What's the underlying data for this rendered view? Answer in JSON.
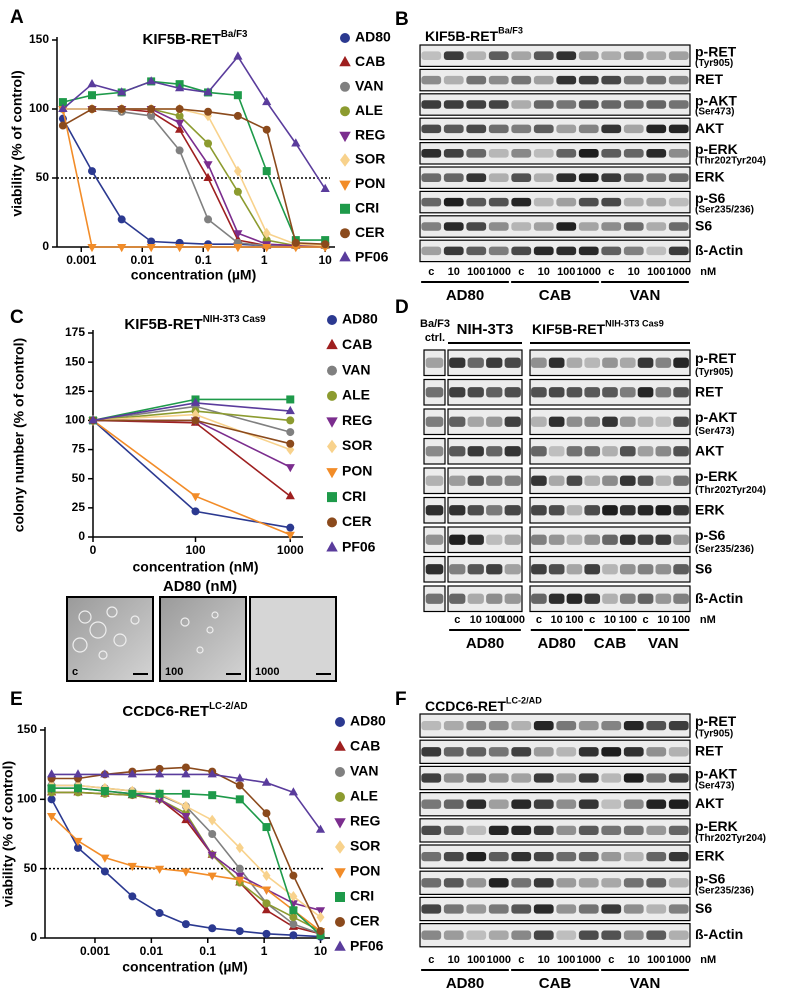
{
  "chart_data": [
    {
      "panel": "A",
      "type": "line",
      "title": "KIF5B-RET",
      "title_superscript": "Ba/F3",
      "xlabel": "concentration (µM)",
      "ylabel": "viability (% of control)",
      "xscale": "log",
      "x": [
        0.0005,
        0.0015,
        0.0046,
        0.014,
        0.041,
        0.12,
        0.37,
        1.1,
        3.3,
        10
      ],
      "xlim": [
        0.0004,
        12
      ],
      "xticks": [
        0.001,
        0.01,
        0.1,
        1,
        10
      ],
      "ylim": [
        0,
        150
      ],
      "yticks": [
        0,
        50,
        100,
        150
      ],
      "reference_line": 50,
      "series": [
        {
          "name": "AD80",
          "color": "#2b3990",
          "marker": "circle",
          "values": [
            93,
            55,
            20,
            4,
            3,
            2,
            2,
            1,
            1,
            1
          ]
        },
        {
          "name": "CAB",
          "color": "#9e1f1f",
          "marker": "triangle",
          "values": [
            100,
            100,
            100,
            98,
            85,
            50,
            5,
            1,
            1,
            1
          ]
        },
        {
          "name": "VAN",
          "color": "#808080",
          "marker": "circle",
          "values": [
            100,
            100,
            98,
            95,
            70,
            20,
            3,
            1,
            1,
            1
          ]
        },
        {
          "name": "ALE",
          "color": "#8c9b2f",
          "marker": "circle",
          "values": [
            100,
            100,
            100,
            100,
            95,
            75,
            40,
            5,
            1,
            1
          ]
        },
        {
          "name": "REG",
          "color": "#7b2d8e",
          "marker": "triangle-down",
          "values": [
            100,
            100,
            100,
            100,
            90,
            60,
            10,
            2,
            1,
            1
          ]
        },
        {
          "name": "SOR",
          "color": "#f8d28c",
          "marker": "diamond",
          "values": [
            100,
            100,
            100,
            100,
            100,
            95,
            55,
            10,
            2,
            1
          ]
        },
        {
          "name": "PON",
          "color": "#f28c28",
          "marker": "triangle-down",
          "values": [
            100,
            0,
            0,
            0,
            0,
            0,
            0,
            0,
            0,
            0
          ]
        },
        {
          "name": "CRI",
          "color": "#1e9a4a",
          "marker": "square",
          "values": [
            105,
            110,
            112,
            120,
            118,
            112,
            110,
            55,
            5,
            5
          ]
        },
        {
          "name": "CER",
          "color": "#8b4a1c",
          "marker": "circle",
          "values": [
            88,
            100,
            100,
            100,
            100,
            98,
            95,
            85,
            3,
            2
          ]
        },
        {
          "name": "PF06",
          "color": "#5a3c9c",
          "marker": "triangle",
          "values": [
            100,
            118,
            112,
            120,
            115,
            112,
            138,
            105,
            75,
            42
          ]
        }
      ]
    },
    {
      "panel": "C",
      "type": "line",
      "title": "KIF5B-RET",
      "title_superscript": "NIH-3T3 Cas9",
      "xlabel": "concentration (nM)",
      "ylabel": "colony number (% of control)",
      "xscale": "symlog",
      "x": [
        0,
        100,
        1000
      ],
      "xlim": [
        0,
        1200
      ],
      "xticks": [
        0,
        100,
        1000
      ],
      "ylim": [
        0,
        175
      ],
      "yticks": [
        0,
        25,
        50,
        75,
        100,
        125,
        150,
        175
      ],
      "series": [
        {
          "name": "AD80",
          "color": "#2b3990",
          "marker": "circle",
          "values": [
            100,
            22,
            8
          ]
        },
        {
          "name": "CAB",
          "color": "#9e1f1f",
          "marker": "triangle",
          "values": [
            100,
            98,
            35
          ]
        },
        {
          "name": "VAN",
          "color": "#808080",
          "marker": "circle",
          "values": [
            100,
            112,
            90
          ]
        },
        {
          "name": "ALE",
          "color": "#8c9b2f",
          "marker": "circle",
          "values": [
            100,
            108,
            100
          ]
        },
        {
          "name": "REG",
          "color": "#7b2d8e",
          "marker": "triangle-down",
          "values": [
            100,
            100,
            60
          ]
        },
        {
          "name": "SOR",
          "color": "#f8d28c",
          "marker": "diamond",
          "values": [
            100,
            105,
            75
          ]
        },
        {
          "name": "PON",
          "color": "#f28c28",
          "marker": "triangle-down",
          "values": [
            100,
            35,
            2
          ]
        },
        {
          "name": "CRI",
          "color": "#1e9a4a",
          "marker": "square",
          "values": [
            100,
            118,
            118
          ]
        },
        {
          "name": "CER",
          "color": "#8b4a1c",
          "marker": "circle",
          "values": [
            100,
            100,
            80
          ]
        },
        {
          "name": "PF06",
          "color": "#5a3c9c",
          "marker": "triangle",
          "values": [
            100,
            115,
            108
          ]
        }
      ]
    },
    {
      "panel": "E",
      "type": "line",
      "title": "CCDC6-RET",
      "title_superscript": "LC-2/AD",
      "xlabel": "concentration (µM)",
      "ylabel": "viability (% of control)",
      "xscale": "log",
      "x": [
        0.00017,
        0.0005,
        0.0015,
        0.0046,
        0.014,
        0.041,
        0.12,
        0.37,
        1.1,
        3.3,
        10
      ],
      "xlim": [
        0.00013,
        12
      ],
      "xticks": [
        0.001,
        0.01,
        0.1,
        1,
        10
      ],
      "ylim": [
        0,
        150
      ],
      "yticks": [
        0,
        50,
        100,
        150
      ],
      "reference_line": 50,
      "series": [
        {
          "name": "AD80",
          "color": "#2b3990",
          "marker": "circle",
          "values": [
            100,
            65,
            48,
            30,
            18,
            10,
            7,
            5,
            3,
            2,
            1
          ]
        },
        {
          "name": "CAB",
          "color": "#9e1f1f",
          "marker": "triangle",
          "values": [
            105,
            105,
            104,
            103,
            100,
            85,
            60,
            40,
            20,
            8,
            3
          ]
        },
        {
          "name": "VAN",
          "color": "#808080",
          "marker": "circle",
          "values": [
            110,
            110,
            108,
            106,
            103,
            95,
            75,
            50,
            25,
            10,
            3
          ]
        },
        {
          "name": "ALE",
          "color": "#8c9b2f",
          "marker": "circle",
          "values": [
            105,
            105,
            104,
            103,
            100,
            90,
            60,
            40,
            25,
            15,
            5
          ]
        },
        {
          "name": "REG",
          "color": "#7b2d8e",
          "marker": "triangle-down",
          "values": [
            108,
            108,
            106,
            104,
            100,
            88,
            60,
            45,
            35,
            25,
            20
          ]
        },
        {
          "name": "SOR",
          "color": "#f8d28c",
          "marker": "diamond",
          "values": [
            110,
            110,
            108,
            106,
            104,
            95,
            85,
            65,
            45,
            30,
            15
          ]
        },
        {
          "name": "PON",
          "color": "#f28c28",
          "marker": "triangle-down",
          "values": [
            88,
            70,
            58,
            52,
            50,
            48,
            45,
            42,
            35,
            20,
            5
          ]
        },
        {
          "name": "CRI",
          "color": "#1e9a4a",
          "marker": "square",
          "values": [
            108,
            108,
            106,
            104,
            104,
            104,
            103,
            100,
            80,
            20,
            2
          ]
        },
        {
          "name": "CER",
          "color": "#8b4a1c",
          "marker": "circle",
          "values": [
            115,
            115,
            118,
            120,
            122,
            123,
            120,
            110,
            90,
            45,
            5
          ]
        },
        {
          "name": "PF06",
          "color": "#5a3c9c",
          "marker": "triangle",
          "values": [
            118,
            118,
            118,
            118,
            118,
            118,
            118,
            115,
            112,
            105,
            78
          ]
        }
      ]
    }
  ],
  "blots": [
    {
      "panel": "B",
      "title": "KIF5B-RET",
      "title_superscript": "Ba/F3",
      "rows": [
        {
          "name": "p-RET",
          "detail": "(Tyr905)"
        },
        {
          "name": "RET"
        },
        {
          "name": "p-AKT",
          "detail": "(Ser473)"
        },
        {
          "name": "AKT"
        },
        {
          "name": "p-ERK",
          "detail": "(Thr202Tyr204)"
        },
        {
          "name": "ERK"
        },
        {
          "name": "p-S6",
          "detail": "(Ser235/236)"
        },
        {
          "name": "S6"
        },
        {
          "name": "ß-Actin"
        }
      ],
      "lanes": [
        "c",
        "10",
        "100",
        "1000",
        "c",
        "10",
        "100",
        "1000",
        "c",
        "10",
        "100",
        "1000"
      ],
      "unit": "nM",
      "groups": [
        "AD80",
        "CAB",
        "VAN"
      ]
    },
    {
      "panel": "D",
      "control": [
        "Ba/F3",
        "ctrl."
      ],
      "sections": [
        {
          "title": "NIH-3T3"
        },
        {
          "title": "KIF5B-RET",
          "title_superscript": "NIH-3T3 Cas9"
        }
      ],
      "rows": [
        {
          "name": "p-RET",
          "detail": "(Tyr905)"
        },
        {
          "name": "RET"
        },
        {
          "name": "p-AKT",
          "detail": "(Ser473)"
        },
        {
          "name": "AKT"
        },
        {
          "name": "p-ERK",
          "detail": "(Thr202Tyr204)"
        },
        {
          "name": "ERK"
        },
        {
          "name": "p-S6",
          "detail": "(Ser235/236)"
        },
        {
          "name": "S6"
        },
        {
          "name": "ß-Actin"
        }
      ],
      "lanes": [
        "c",
        "10",
        "100",
        "1000",
        "c",
        "10",
        "100",
        "c",
        "10",
        "100",
        "c",
        "10",
        "100"
      ],
      "unit": "nM",
      "groups": [
        "AD80",
        "AD80",
        "CAB",
        "VAN"
      ]
    },
    {
      "panel": "F",
      "title": "CCDC6-RET",
      "title_superscript": "LC-2/AD",
      "rows": [
        {
          "name": "p-RET",
          "detail": "(Tyr905)"
        },
        {
          "name": "RET"
        },
        {
          "name": "p-AKT",
          "detail": "(Ser473)"
        },
        {
          "name": "AKT"
        },
        {
          "name": "p-ERK",
          "detail": "(Thr202Tyr204)"
        },
        {
          "name": "ERK"
        },
        {
          "name": "p-S6",
          "detail": "(Ser235/236)"
        },
        {
          "name": "S6"
        },
        {
          "name": "ß-Actin"
        }
      ],
      "lanes": [
        "c",
        "10",
        "100",
        "1000",
        "c",
        "10",
        "100",
        "1000",
        "c",
        "10",
        "100",
        "1000"
      ],
      "unit": "nM",
      "groups": [
        "AD80",
        "CAB",
        "VAN"
      ]
    }
  ],
  "images": {
    "title": "AD80 (nM)",
    "labels": [
      "c",
      "100",
      "1000"
    ]
  }
}
